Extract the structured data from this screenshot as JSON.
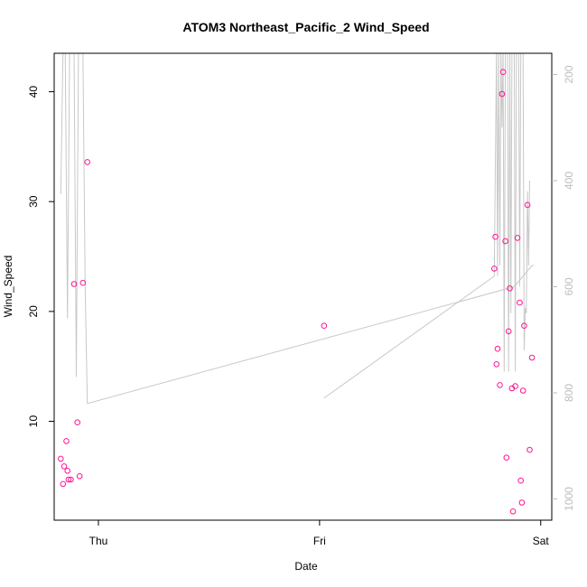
{
  "chart_data": {
    "type": "scatter",
    "title": "ATOM3 Northeast_Pacific_2 Wind_Speed",
    "xlabel": "Date",
    "ylabel": "Wind_Speed",
    "x_ticks": [
      "Thu",
      "Fri",
      "Sat"
    ],
    "x_range_days": [
      -0.2,
      2.05
    ],
    "ylim": [
      1,
      43.5
    ],
    "y_ticks": [
      10,
      20,
      30,
      40
    ],
    "grid": false,
    "legend": "none",
    "colors": {
      "points": "#ff1493",
      "overlay_line": "#c8c8c8",
      "right_axis": "#bdbdbd",
      "frame": "#000000"
    },
    "points": [
      {
        "x": -0.17,
        "y": 6.6
      },
      {
        "x": -0.16,
        "y": 4.3
      },
      {
        "x": -0.155,
        "y": 5.9
      },
      {
        "x": -0.145,
        "y": 8.2
      },
      {
        "x": -0.14,
        "y": 5.5
      },
      {
        "x": -0.135,
        "y": 4.7
      },
      {
        "x": -0.125,
        "y": 4.7
      },
      {
        "x": -0.11,
        "y": 22.5
      },
      {
        "x": -0.095,
        "y": 9.9
      },
      {
        "x": -0.085,
        "y": 5.0
      },
      {
        "x": -0.07,
        "y": 22.6
      },
      {
        "x": -0.05,
        "y": 33.6
      },
      {
        "x": 1.02,
        "y": 18.7
      },
      {
        "x": 1.79,
        "y": 23.9
      },
      {
        "x": 1.795,
        "y": 26.8
      },
      {
        "x": 1.8,
        "y": 15.2
      },
      {
        "x": 1.805,
        "y": 16.6
      },
      {
        "x": 1.815,
        "y": 13.3
      },
      {
        "x": 1.825,
        "y": 39.8
      },
      {
        "x": 1.83,
        "y": 41.8
      },
      {
        "x": 1.84,
        "y": 26.4
      },
      {
        "x": 1.845,
        "y": 6.7
      },
      {
        "x": 1.855,
        "y": 18.2
      },
      {
        "x": 1.86,
        "y": 22.1
      },
      {
        "x": 1.87,
        "y": 13.0
      },
      {
        "x": 1.875,
        "y": 1.8
      },
      {
        "x": 1.885,
        "y": 13.2
      },
      {
        "x": 1.895,
        "y": 26.7
      },
      {
        "x": 1.905,
        "y": 20.8
      },
      {
        "x": 1.91,
        "y": 4.6
      },
      {
        "x": 1.915,
        "y": 2.6
      },
      {
        "x": 1.92,
        "y": 12.8
      },
      {
        "x": 1.925,
        "y": 18.7
      },
      {
        "x": 1.94,
        "y": 29.7
      },
      {
        "x": 1.95,
        "y": 7.4
      },
      {
        "x": 1.96,
        "y": 15.8
      }
    ],
    "overlay": {
      "right_axis_ticks": [
        200,
        400,
        600,
        800,
        1000
      ],
      "right_axis_range": [
        1040,
        160
      ],
      "series": [
        {
          "x": [
            -0.17,
            -0.16,
            -0.15,
            -0.14,
            -0.13,
            -0.12,
            -0.11,
            -0.1,
            -0.09,
            -0.08,
            -0.07,
            -0.06,
            -0.05,
            1.88,
            1.96,
            1.965,
            1.97
          ],
          "y": [
            425,
            150,
            150,
            660,
            150,
            150,
            150,
            770,
            150,
            150,
            150,
            600,
            820,
            600,
            560,
            560,
            560
          ]
        },
        {
          "x": [
            1.02,
            1.79,
            1.8,
            1.805,
            1.81,
            1.815,
            1.82,
            1.825,
            1.83,
            1.835,
            1.84,
            1.845,
            1.85,
            1.855,
            1.86,
            1.865,
            1.87,
            1.875,
            1.88,
            1.885,
            1.89,
            1.895,
            1.9,
            1.905,
            1.91,
            1.915,
            1.92,
            1.925,
            1.93,
            1.935,
            1.94,
            1.945,
            1.95
          ],
          "y": [
            810,
            580,
            150,
            580,
            150,
            560,
            150,
            300,
            150,
            760,
            150,
            150,
            150,
            760,
            150,
            650,
            150,
            150,
            150,
            760,
            150,
            150,
            150,
            600,
            150,
            150,
            150,
            720,
            640,
            650,
            420,
            560,
            400
          ]
        }
      ]
    }
  }
}
